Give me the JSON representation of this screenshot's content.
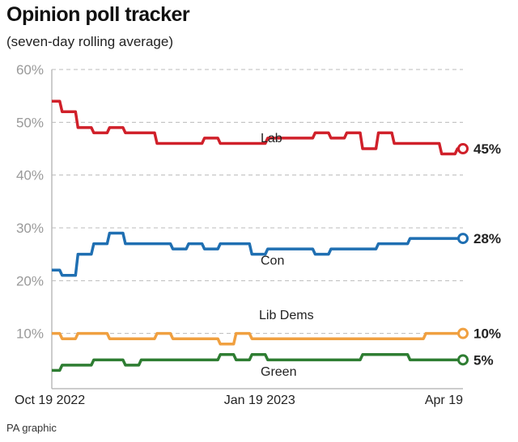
{
  "title": "Opinion poll tracker",
  "subtitle": "(seven-day rolling average)",
  "credit": "PA graphic",
  "chart_data": {
    "type": "line",
    "title": "Opinion poll tracker",
    "subtitle": "(seven-day rolling average)",
    "ylim": [
      0,
      60
    ],
    "yticks": [
      "60%",
      "50%",
      "40%",
      "30%",
      "20%",
      "10%"
    ],
    "ytick_values": [
      60,
      50,
      40,
      30,
      20,
      10
    ],
    "xticks": [
      "Oct 19 2022",
      "Jan 19 2023",
      "Apr 19"
    ],
    "xtick_dates": [
      "2022-10-19",
      "2023-01-19",
      "2023-04-19"
    ],
    "grid": true,
    "x": [
      "2022-10-19",
      "2022-10-26",
      "2022-11-02",
      "2022-11-09",
      "2022-11-16",
      "2022-11-23",
      "2022-11-30",
      "2022-12-07",
      "2022-12-14",
      "2022-12-21",
      "2022-12-28",
      "2023-01-04",
      "2023-01-11",
      "2023-01-18",
      "2023-01-25",
      "2023-02-01",
      "2023-02-08",
      "2023-02-15",
      "2023-02-22",
      "2023-03-01",
      "2023-03-08",
      "2023-03-15",
      "2023-03-22",
      "2023-03-29",
      "2023-04-05",
      "2023-04-12",
      "2023-04-19"
    ],
    "series": [
      {
        "name": "Lab",
        "color": "#d0202a",
        "end_label": "45%",
        "values": [
          54,
          52,
          49,
          48,
          49,
          48,
          48,
          46,
          46,
          46,
          47,
          46,
          46,
          46,
          47,
          47,
          47,
          48,
          47,
          48,
          45,
          48,
          46,
          46,
          46,
          44,
          45
        ]
      },
      {
        "name": "Con",
        "color": "#1f6fb2",
        "end_label": "28%",
        "values": [
          22,
          21,
          25,
          27,
          29,
          27,
          27,
          27,
          26,
          27,
          26,
          27,
          27,
          25,
          26,
          26,
          26,
          25,
          26,
          26,
          26,
          27,
          27,
          28,
          28,
          28,
          28
        ]
      },
      {
        "name": "Lib Dems",
        "color": "#f0a040",
        "end_label": "10%",
        "values": [
          10,
          9,
          10,
          10,
          9,
          9,
          9,
          10,
          9,
          9,
          9,
          8,
          10,
          9,
          9,
          9,
          9,
          9,
          9,
          9,
          9,
          9,
          9,
          9,
          10,
          10,
          10
        ]
      },
      {
        "name": "Green",
        "color": "#2e7d32",
        "end_label": "5%",
        "values": [
          3,
          4,
          4,
          5,
          5,
          4,
          5,
          5,
          5,
          5,
          5,
          6,
          5,
          6,
          5,
          5,
          5,
          5,
          5,
          5,
          6,
          6,
          6,
          5,
          5,
          5,
          5
        ]
      }
    ]
  }
}
